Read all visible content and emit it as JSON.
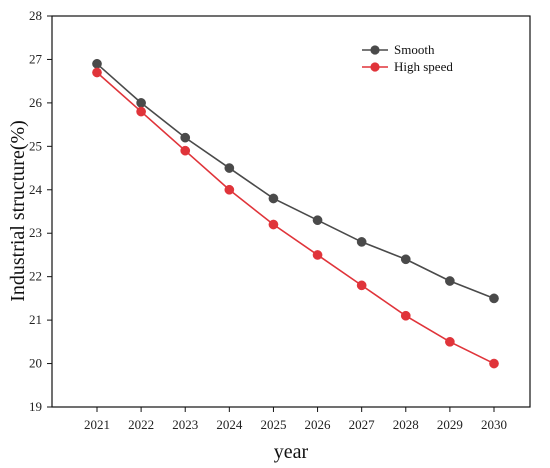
{
  "chart_data": {
    "type": "line",
    "xlabel": "year",
    "ylabel": "Industrial structure(%)",
    "categories": [
      "2021",
      "2022",
      "2023",
      "2024",
      "2025",
      "2026",
      "2027",
      "2028",
      "2029",
      "2030"
    ],
    "ylim": [
      19,
      28
    ],
    "yticks": [
      19,
      20,
      21,
      22,
      23,
      24,
      25,
      26,
      27,
      28
    ],
    "legend_position": "top-right",
    "grid": false,
    "series": [
      {
        "name": "Smooth",
        "color": "#4a4a4a",
        "values": [
          26.9,
          26.0,
          25.2,
          24.5,
          23.8,
          23.3,
          22.8,
          22.4,
          21.9,
          21.5
        ]
      },
      {
        "name": "High speed",
        "color": "#e0343a",
        "values": [
          26.7,
          25.8,
          24.9,
          24.0,
          23.2,
          22.5,
          21.8,
          21.1,
          20.5,
          20.0
        ]
      }
    ]
  }
}
